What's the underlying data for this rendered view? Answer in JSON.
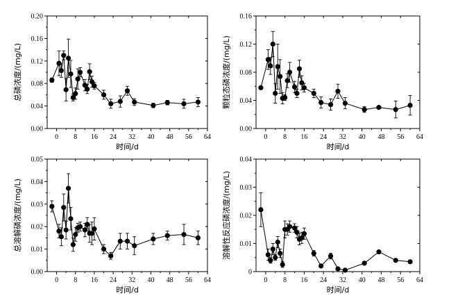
{
  "chart_data": [
    {
      "type": "scatter",
      "connected": true,
      "xlabel": "时间/d",
      "ylabel": "总磷浓度/(mg/L)",
      "xlim": [
        -4,
        64
      ],
      "ylim": [
        0,
        0.2
      ],
      "xticks": [
        0,
        8,
        16,
        24,
        32,
        40,
        48,
        56,
        64
      ],
      "yticks": [
        0.0,
        0.04,
        0.08,
        0.12,
        0.16,
        0.2
      ],
      "ytick_labels": [
        "0.00",
        "0.04",
        "0.08",
        "0.12",
        "0.16",
        "0.20"
      ],
      "points": [
        {
          "x": -2,
          "y": 0.086,
          "err": 0.004
        },
        {
          "x": 1,
          "y": 0.116,
          "err": 0.022
        },
        {
          "x": 2,
          "y": 0.103,
          "err": 0.012
        },
        {
          "x": 3,
          "y": 0.13,
          "err": 0.008
        },
        {
          "x": 4,
          "y": 0.069,
          "err": 0.02
        },
        {
          "x": 5,
          "y": 0.125,
          "err": 0.034
        },
        {
          "x": 6,
          "y": 0.097,
          "err": 0.024
        },
        {
          "x": 7,
          "y": 0.055,
          "err": 0.006
        },
        {
          "x": 8,
          "y": 0.062,
          "err": 0.01
        },
        {
          "x": 9,
          "y": 0.088,
          "err": 0.018
        },
        {
          "x": 10,
          "y": 0.1,
          "err": 0.008
        },
        {
          "x": 12,
          "y": 0.077,
          "err": 0.01
        },
        {
          "x": 13,
          "y": 0.07,
          "err": 0.008
        },
        {
          "x": 14,
          "y": 0.101,
          "err": 0.014
        },
        {
          "x": 15,
          "y": 0.083,
          "err": 0.01
        },
        {
          "x": 16,
          "y": 0.076,
          "err": 0.006
        },
        {
          "x": 20,
          "y": 0.06,
          "err": 0.008
        },
        {
          "x": 23,
          "y": 0.044,
          "err": 0.008
        },
        {
          "x": 27,
          "y": 0.048,
          "err": 0.01
        },
        {
          "x": 30,
          "y": 0.067,
          "err": 0.008
        },
        {
          "x": 33,
          "y": 0.047,
          "err": 0.006
        },
        {
          "x": 41,
          "y": 0.041,
          "err": 0.004
        },
        {
          "x": 47,
          "y": 0.046,
          "err": 0.004
        },
        {
          "x": 54,
          "y": 0.044,
          "err": 0.008
        },
        {
          "x": 60,
          "y": 0.047,
          "err": 0.008
        }
      ]
    },
    {
      "type": "scatter",
      "connected": true,
      "xlabel": "时间/d",
      "ylabel": "颗粒态磷浓度/(mg/L)",
      "xlim": [
        -4,
        64
      ],
      "ylim": [
        0,
        0.16
      ],
      "xticks": [
        0,
        8,
        16,
        24,
        32,
        40,
        48,
        56,
        64
      ],
      "yticks": [
        0.0,
        0.04,
        0.08,
        0.12,
        0.16
      ],
      "ytick_labels": [
        "0.00",
        "0.04",
        "0.08",
        "0.12",
        "0.16"
      ],
      "points": [
        {
          "x": -2,
          "y": 0.058,
          "err": 0.002
        },
        {
          "x": 1,
          "y": 0.098,
          "err": 0.014
        },
        {
          "x": 2,
          "y": 0.089,
          "err": 0.012
        },
        {
          "x": 3,
          "y": 0.12,
          "err": 0.018
        },
        {
          "x": 4,
          "y": 0.05,
          "err": 0.014
        },
        {
          "x": 5,
          "y": 0.088,
          "err": 0.032
        },
        {
          "x": 6,
          "y": 0.074,
          "err": 0.024
        },
        {
          "x": 7,
          "y": 0.043,
          "err": 0.008
        },
        {
          "x": 8,
          "y": 0.044,
          "err": 0.004
        },
        {
          "x": 9,
          "y": 0.068,
          "err": 0.01
        },
        {
          "x": 10,
          "y": 0.08,
          "err": 0.014
        },
        {
          "x": 12,
          "y": 0.059,
          "err": 0.008
        },
        {
          "x": 13,
          "y": 0.05,
          "err": 0.006
        },
        {
          "x": 14,
          "y": 0.085,
          "err": 0.012
        },
        {
          "x": 15,
          "y": 0.065,
          "err": 0.01
        },
        {
          "x": 16,
          "y": 0.058,
          "err": 0.006
        },
        {
          "x": 20,
          "y": 0.05,
          "err": 0.006
        },
        {
          "x": 23,
          "y": 0.037,
          "err": 0.008
        },
        {
          "x": 27,
          "y": 0.034,
          "err": 0.008
        },
        {
          "x": 30,
          "y": 0.053,
          "err": 0.01
        },
        {
          "x": 33,
          "y": 0.036,
          "err": 0.008
        },
        {
          "x": 41,
          "y": 0.027,
          "err": 0.004
        },
        {
          "x": 47,
          "y": 0.03,
          "err": 0.002
        },
        {
          "x": 54,
          "y": 0.027,
          "err": 0.012
        },
        {
          "x": 60,
          "y": 0.033,
          "err": 0.014
        }
      ]
    },
    {
      "type": "scatter",
      "connected": true,
      "xlabel": "时间/d",
      "ylabel": "总溶解磷浓度/(mg/L)",
      "xlim": [
        -4,
        64
      ],
      "ylim": [
        0,
        0.05
      ],
      "xticks": [
        0,
        8,
        16,
        24,
        32,
        40,
        48,
        56,
        64
      ],
      "yticks": [
        0.0,
        0.01,
        0.02,
        0.03,
        0.04,
        0.05
      ],
      "ytick_labels": [
        "0.00",
        "0.01",
        "0.02",
        "0.03",
        "0.04",
        "0.05"
      ],
      "points": [
        {
          "x": -2,
          "y": 0.029,
          "err": 0.0025
        },
        {
          "x": 1,
          "y": 0.018,
          "err": 0.003
        },
        {
          "x": 2,
          "y": 0.0155,
          "err": 0.004
        },
        {
          "x": 3,
          "y": 0.0285,
          "err": 0.006
        },
        {
          "x": 4,
          "y": 0.0185,
          "err": 0.004
        },
        {
          "x": 5,
          "y": 0.037,
          "err": 0.0065
        },
        {
          "x": 6,
          "y": 0.0235,
          "err": 0.005
        },
        {
          "x": 7,
          "y": 0.012,
          "err": 0.003
        },
        {
          "x": 8,
          "y": 0.0165,
          "err": 0.003
        },
        {
          "x": 9,
          "y": 0.0195,
          "err": 0.002
        },
        {
          "x": 10,
          "y": 0.02,
          "err": 0.002
        },
        {
          "x": 12,
          "y": 0.0185,
          "err": 0.003
        },
        {
          "x": 13,
          "y": 0.021,
          "err": 0.003
        },
        {
          "x": 14,
          "y": 0.017,
          "err": 0.004
        },
        {
          "x": 15,
          "y": 0.017,
          "err": 0.005
        },
        {
          "x": 16,
          "y": 0.019,
          "err": 0.005
        },
        {
          "x": 20,
          "y": 0.01,
          "err": 0.002
        },
        {
          "x": 23,
          "y": 0.007,
          "err": 0.0015
        },
        {
          "x": 27,
          "y": 0.0135,
          "err": 0.0035
        },
        {
          "x": 30,
          "y": 0.0135,
          "err": 0.0035
        },
        {
          "x": 33,
          "y": 0.0115,
          "err": 0.004
        },
        {
          "x": 41,
          "y": 0.0145,
          "err": 0.0025
        },
        {
          "x": 47,
          "y": 0.016,
          "err": 0.002
        },
        {
          "x": 54,
          "y": 0.0165,
          "err": 0.0045
        },
        {
          "x": 60,
          "y": 0.015,
          "err": 0.003
        }
      ]
    },
    {
      "type": "scatter",
      "connected": true,
      "xlabel": "时间/d",
      "ylabel": "溶解性反应磷浓度/(mg/L)",
      "xlim": [
        -4,
        64
      ],
      "ylim": [
        0,
        0.04
      ],
      "xticks": [
        0,
        8,
        16,
        24,
        32,
        40,
        48,
        56,
        64
      ],
      "yticks": [
        0.0,
        0.01,
        0.02,
        0.03,
        0.04
      ],
      "ytick_labels": [
        "0",
        "0.01",
        "0.02",
        "0.03",
        "0.04"
      ],
      "points": [
        {
          "x": -2,
          "y": 0.022,
          "err": 0.006
        },
        {
          "x": 1,
          "y": 0.006,
          "err": 0.002
        },
        {
          "x": 2,
          "y": 0.004,
          "err": 0.001
        },
        {
          "x": 3,
          "y": 0.008,
          "err": 0.002
        },
        {
          "x": 4,
          "y": 0.005,
          "err": 0.001
        },
        {
          "x": 5,
          "y": 0.0105,
          "err": 0.002
        },
        {
          "x": 6,
          "y": 0.0065,
          "err": 0.0015
        },
        {
          "x": 7,
          "y": 0.0025,
          "err": 0.001
        },
        {
          "x": 8,
          "y": 0.015,
          "err": 0.003
        },
        {
          "x": 9,
          "y": 0.015,
          "err": 0.002
        },
        {
          "x": 10,
          "y": 0.016,
          "err": 0.002
        },
        {
          "x": 12,
          "y": 0.0155,
          "err": 0.0015
        },
        {
          "x": 13,
          "y": 0.014,
          "err": 0.002
        },
        {
          "x": 14,
          "y": 0.0115,
          "err": 0.002
        },
        {
          "x": 15,
          "y": 0.012,
          "err": 0.002
        },
        {
          "x": 16,
          "y": 0.0135,
          "err": 0.002
        },
        {
          "x": 20,
          "y": 0.0065,
          "err": 0.001
        },
        {
          "x": 23,
          "y": 0.002,
          "err": 0.0005
        },
        {
          "x": 27,
          "y": 0.0055,
          "err": 0.001
        },
        {
          "x": 30,
          "y": 0.001,
          "err": 0.0005
        },
        {
          "x": 33,
          "y": 0.0005,
          "err": 0.0005
        },
        {
          "x": 41,
          "y": 0.003,
          "err": 0.0005
        },
        {
          "x": 47,
          "y": 0.007,
          "err": 0.0005
        },
        {
          "x": 54,
          "y": 0.004,
          "err": 0.0005
        },
        {
          "x": 60,
          "y": 0.0035,
          "err": 0.0005
        }
      ]
    }
  ]
}
